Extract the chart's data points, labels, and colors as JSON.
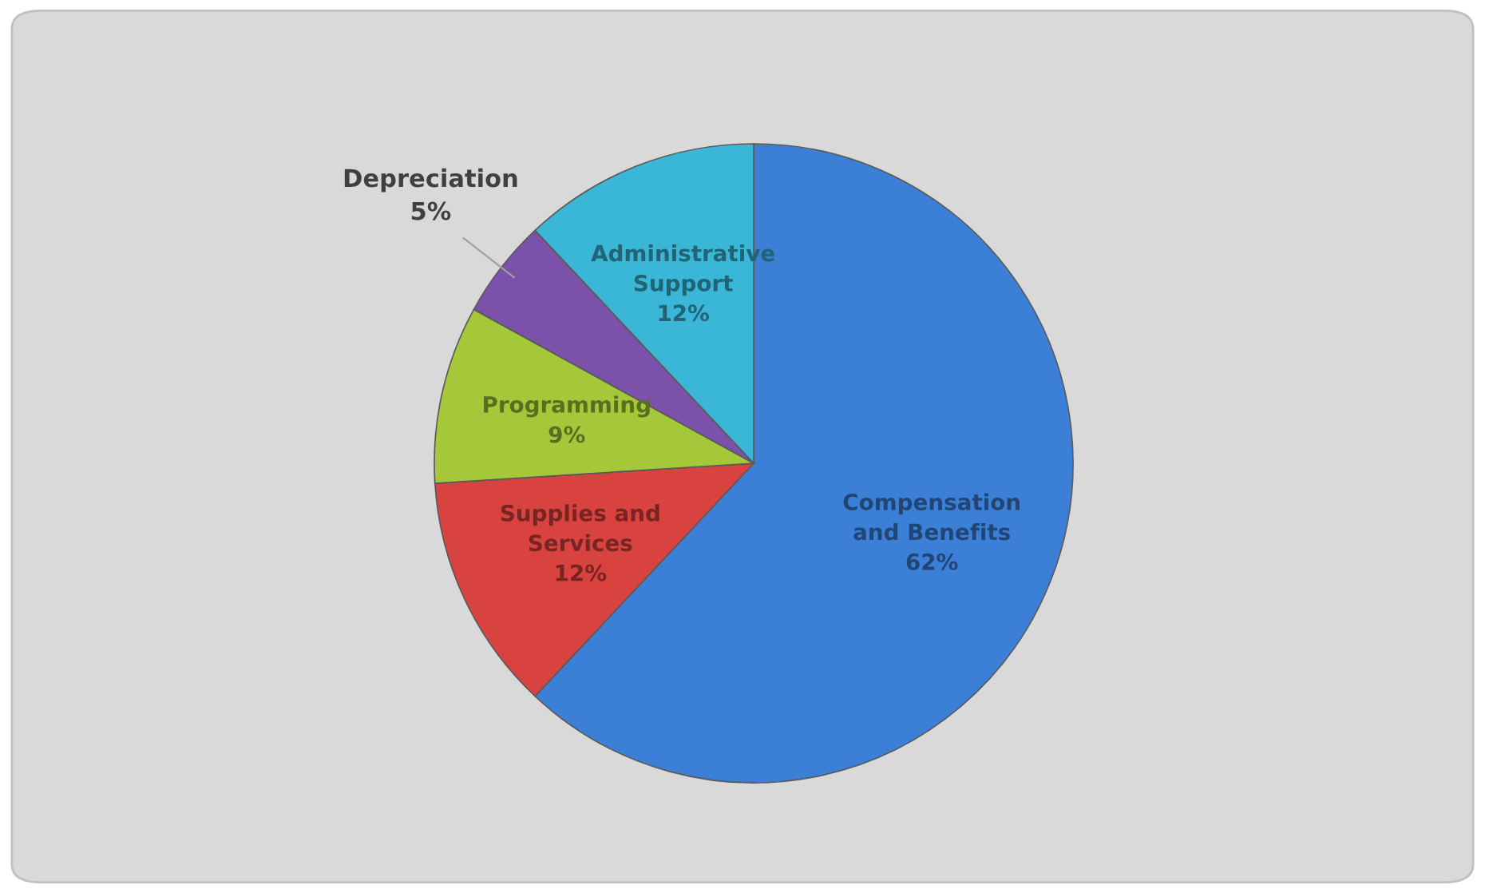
{
  "chart_data": {
    "type": "pie",
    "categories": [
      "Compensation\nand Benefits",
      "Supplies and\nServices",
      "Programming",
      "Depreciation",
      "Administrative\nSupport"
    ],
    "values": [
      62,
      12,
      9,
      5,
      12
    ],
    "colors": [
      "#3c7fd6",
      "#d8423f",
      "#a4c83a",
      "#7b51a9",
      "#3ab6d7"
    ],
    "value_labels": [
      "62%",
      "12%",
      "9%",
      "5%",
      "12%"
    ],
    "legend": false
  }
}
